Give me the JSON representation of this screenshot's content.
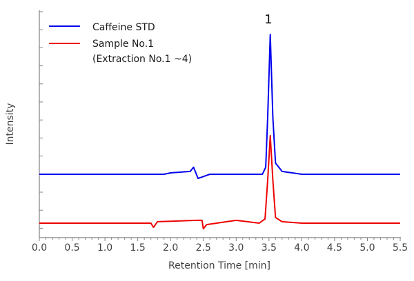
{
  "chart_data": {
    "type": "line",
    "title": "",
    "xlabel": "Retention Time [min]",
    "ylabel": "Intensity",
    "xlim": [
      0.0,
      5.5
    ],
    "x_ticks": [
      "0.0",
      "0.5",
      "1.0",
      "1.5",
      "2.0",
      "2.5",
      "3.0",
      "3.5",
      "4.0",
      "4.5",
      "5.0",
      "5.5"
    ],
    "y_ticks_labeled": false,
    "grid": false,
    "legend_position": "upper-left",
    "annotations": [
      {
        "text": "1",
        "x": 3.52,
        "position": "above peak"
      }
    ],
    "series": [
      {
        "name": "Caffeine STD",
        "color": "#0000ee",
        "baseline_offset": "upper trace",
        "points": [
          [
            0.0,
            0
          ],
          [
            1.9,
            0
          ],
          [
            2.0,
            0.01
          ],
          [
            2.3,
            0.02
          ],
          [
            2.35,
            0.05
          ],
          [
            2.42,
            -0.03
          ],
          [
            2.6,
            0
          ],
          [
            3.4,
            0
          ],
          [
            3.45,
            0.05
          ],
          [
            3.48,
            0.4
          ],
          [
            3.52,
            1.0
          ],
          [
            3.56,
            0.4
          ],
          [
            3.6,
            0.08
          ],
          [
            3.7,
            0.02
          ],
          [
            4.0,
            0
          ],
          [
            5.5,
            0
          ]
        ]
      },
      {
        "name": "Sample No.1 (Extraction No.1 ~4)",
        "color": "#ee0000",
        "baseline_offset": "lower trace",
        "points": [
          [
            0.0,
            0
          ],
          [
            1.7,
            0
          ],
          [
            1.74,
            -0.03
          ],
          [
            1.8,
            0.01
          ],
          [
            2.4,
            0.02
          ],
          [
            2.48,
            0.02
          ],
          [
            2.5,
            -0.04
          ],
          [
            2.55,
            -0.01
          ],
          [
            3.0,
            0.02
          ],
          [
            3.35,
            0
          ],
          [
            3.44,
            0.03
          ],
          [
            3.48,
            0.3
          ],
          [
            3.52,
            0.62
          ],
          [
            3.56,
            0.3
          ],
          [
            3.6,
            0.04
          ],
          [
            3.7,
            0.01
          ],
          [
            4.0,
            0
          ],
          [
            5.5,
            0
          ]
        ]
      }
    ]
  },
  "legend": {
    "items": [
      {
        "label": "Caffeine STD",
        "color": "#0000ee"
      },
      {
        "label": "Sample No.1",
        "color": "#ee0000"
      }
    ],
    "sub_label": "(Extraction No.1 ~4)"
  },
  "axes": {
    "xlabel": "Retention Time [min]",
    "ylabel": "Intensity"
  },
  "peak_label": "1",
  "x_tick_labels": [
    "0.0",
    "0.5",
    "1.0",
    "1.5",
    "2.0",
    "2.5",
    "3.0",
    "3.5",
    "4.0",
    "4.5",
    "5.0",
    "5.5"
  ]
}
